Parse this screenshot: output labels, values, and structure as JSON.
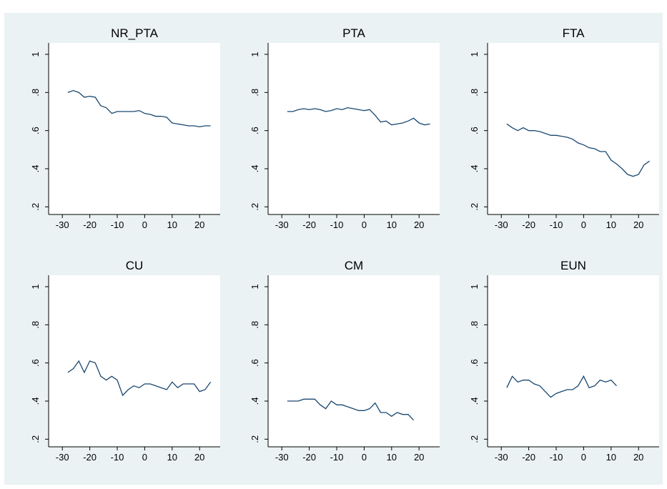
{
  "chart_data": [
    {
      "type": "line",
      "title": "NR_PTA",
      "color": "#1a476f",
      "x": [
        -28,
        -26,
        -24,
        -22,
        -20,
        -18,
        -16,
        -14,
        -12,
        -10,
        -8,
        -6,
        -4,
        -2,
        0,
        2,
        4,
        6,
        8,
        10,
        12,
        14,
        16,
        18,
        20,
        22,
        24
      ],
      "values": [
        0.8,
        0.81,
        0.8,
        0.775,
        0.78,
        0.775,
        0.73,
        0.72,
        0.69,
        0.7,
        0.7,
        0.7,
        0.7,
        0.705,
        0.69,
        0.685,
        0.675,
        0.675,
        0.67,
        0.64,
        0.635,
        0.63,
        0.625,
        0.625,
        0.62,
        0.625,
        0.625
      ],
      "xlim": [
        -35,
        27.5
      ],
      "ylim": [
        0.16,
        1.06
      ],
      "xticks": [
        -30,
        -20,
        -10,
        0,
        10,
        20
      ],
      "yticks": [
        {
          "value": 0.2,
          "label": ".2"
        },
        {
          "value": 0.4,
          "label": ".4"
        },
        {
          "value": 0.6,
          "label": ".6"
        },
        {
          "value": 0.8,
          "label": ".8"
        },
        1
      ]
    },
    {
      "type": "line",
      "title": "PTA",
      "color": "#1a476f",
      "x": [
        -28,
        -26,
        -24,
        -22,
        -20,
        -18,
        -16,
        -14,
        -12,
        -10,
        -8,
        -6,
        -4,
        -2,
        0,
        2,
        4,
        6,
        8,
        10,
        12,
        14,
        16,
        18,
        20,
        22,
        24
      ],
      "values": [
        0.7,
        0.7,
        0.71,
        0.715,
        0.71,
        0.715,
        0.71,
        0.7,
        0.705,
        0.715,
        0.71,
        0.72,
        0.715,
        0.71,
        0.705,
        0.71,
        0.68,
        0.645,
        0.65,
        0.63,
        0.635,
        0.64,
        0.65,
        0.665,
        0.64,
        0.63,
        0.635
      ],
      "xlim": [
        -35,
        27.5
      ],
      "ylim": [
        0.16,
        1.06
      ],
      "xticks": [
        -30,
        -20,
        -10,
        0,
        10,
        20
      ],
      "yticks": [
        {
          "value": 0.2,
          "label": ".2"
        },
        {
          "value": 0.4,
          "label": ".4"
        },
        {
          "value": 0.6,
          "label": ".6"
        },
        {
          "value": 0.8,
          "label": ".8"
        },
        1
      ]
    },
    {
      "type": "line",
      "title": "FTA",
      "color": "#1a476f",
      "x": [
        -28,
        -26,
        -24,
        -22,
        -20,
        -18,
        -16,
        -14,
        -12,
        -10,
        -8,
        -6,
        -4,
        -2,
        0,
        2,
        4,
        6,
        8,
        10,
        12,
        14,
        16,
        18,
        20,
        22,
        24
      ],
      "values": [
        0.635,
        0.615,
        0.6,
        0.615,
        0.6,
        0.6,
        0.595,
        0.585,
        0.575,
        0.575,
        0.57,
        0.565,
        0.555,
        0.535,
        0.525,
        0.51,
        0.505,
        0.49,
        0.49,
        0.445,
        0.425,
        0.4,
        0.37,
        0.36,
        0.37,
        0.42,
        0.44
      ],
      "xlim": [
        -35,
        27.5
      ],
      "ylim": [
        0.16,
        1.06
      ],
      "xticks": [
        -30,
        -20,
        -10,
        0,
        10,
        20
      ],
      "yticks": [
        {
          "value": 0.2,
          "label": ".2"
        },
        {
          "value": 0.4,
          "label": ".4"
        },
        {
          "value": 0.6,
          "label": ".6"
        },
        {
          "value": 0.8,
          "label": ".8"
        },
        1
      ]
    },
    {
      "type": "line",
      "title": "CU",
      "color": "#1a476f",
      "x": [
        -28,
        -26,
        -24,
        -22,
        -20,
        -18,
        -16,
        -14,
        -12,
        -10,
        -8,
        -6,
        -4,
        -2,
        0,
        2,
        4,
        6,
        8,
        10,
        12,
        14,
        16,
        18,
        20,
        22,
        24
      ],
      "values": [
        0.55,
        0.57,
        0.61,
        0.55,
        0.61,
        0.6,
        0.53,
        0.51,
        0.53,
        0.51,
        0.43,
        0.46,
        0.48,
        0.47,
        0.49,
        0.49,
        0.48,
        0.47,
        0.46,
        0.5,
        0.47,
        0.49,
        0.49,
        0.49,
        0.45,
        0.46,
        0.5
      ],
      "xlim": [
        -35,
        27.5
      ],
      "ylim": [
        0.16,
        1.06
      ],
      "xticks": [
        -30,
        -20,
        -10,
        0,
        10,
        20
      ],
      "yticks": [
        {
          "value": 0.2,
          "label": ".2"
        },
        {
          "value": 0.4,
          "label": ".4"
        },
        {
          "value": 0.6,
          "label": ".6"
        },
        {
          "value": 0.8,
          "label": ".8"
        },
        1
      ]
    },
    {
      "type": "line",
      "title": "CM",
      "color": "#1a476f",
      "x": [
        -28,
        -26,
        -24,
        -22,
        -20,
        -18,
        -16,
        -14,
        -12,
        -10,
        -8,
        -6,
        -4,
        -2,
        0,
        2,
        4,
        6,
        8,
        10,
        12,
        14,
        16,
        18
      ],
      "values": [
        0.4,
        0.4,
        0.4,
        0.41,
        0.41,
        0.41,
        0.38,
        0.36,
        0.4,
        0.38,
        0.38,
        0.37,
        0.36,
        0.35,
        0.35,
        0.36,
        0.39,
        0.34,
        0.34,
        0.32,
        0.34,
        0.33,
        0.33,
        0.3
      ],
      "xlim": [
        -35,
        27.5
      ],
      "ylim": [
        0.16,
        1.06
      ],
      "xticks": [
        -30,
        -20,
        -10,
        0,
        10,
        20
      ],
      "yticks": [
        {
          "value": 0.2,
          "label": ".2"
        },
        {
          "value": 0.4,
          "label": ".4"
        },
        {
          "value": 0.6,
          "label": ".6"
        },
        {
          "value": 0.8,
          "label": ".8"
        },
        1
      ]
    },
    {
      "type": "line",
      "title": "EUN",
      "color": "#1a476f",
      "x": [
        -28,
        -26,
        -24,
        -22,
        -20,
        -18,
        -16,
        -14,
        -12,
        -10,
        -8,
        -6,
        -4,
        -2,
        0,
        2,
        4,
        6,
        8,
        10,
        12
      ],
      "values": [
        0.47,
        0.53,
        0.5,
        0.51,
        0.51,
        0.49,
        0.48,
        0.45,
        0.42,
        0.44,
        0.45,
        0.46,
        0.46,
        0.48,
        0.53,
        0.47,
        0.48,
        0.51,
        0.5,
        0.51,
        0.48
      ],
      "xlim": [
        -35,
        27.5
      ],
      "ylim": [
        0.16,
        1.06
      ],
      "xticks": [
        -30,
        -20,
        -10,
        0,
        10,
        20
      ],
      "yticks": [
        {
          "value": 0.2,
          "label": ".2"
        },
        {
          "value": 0.4,
          "label": ".4"
        },
        {
          "value": 0.6,
          "label": ".6"
        },
        {
          "value": 0.8,
          "label": ".8"
        },
        1
      ]
    }
  ]
}
